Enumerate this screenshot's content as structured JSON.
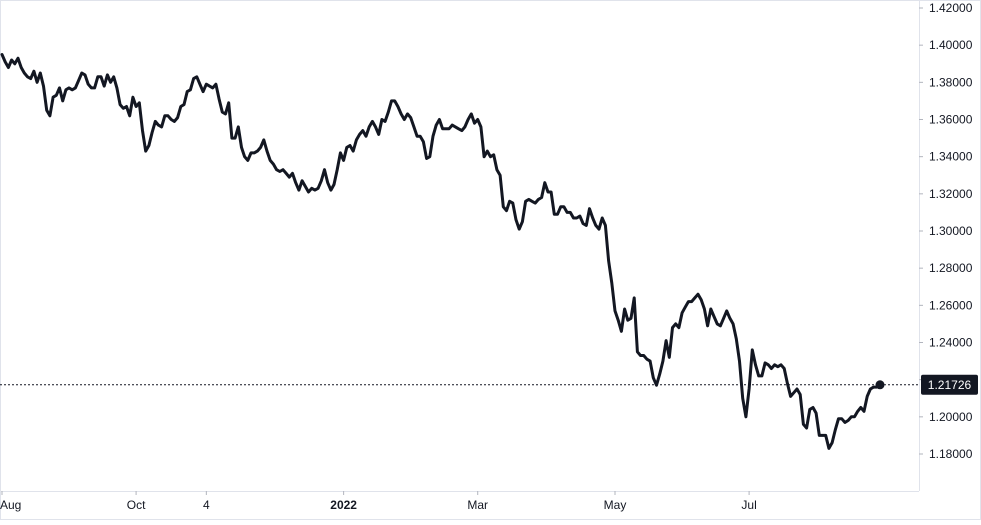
{
  "chart_data": {
    "type": "line",
    "title": "",
    "xlabel": "",
    "ylabel": "",
    "ylim": [
      1.17,
      1.42
    ],
    "ytick_labels": [
      "1.42000",
      "1.40000",
      "1.38000",
      "1.36000",
      "1.34000",
      "1.32000",
      "1.30000",
      "1.28000",
      "1.26000",
      "1.24000",
      "1.22000",
      "1.20000",
      "1.18000"
    ],
    "yticks": [
      1.42,
      1.4,
      1.38,
      1.36,
      1.34,
      1.32,
      1.3,
      1.28,
      1.26,
      1.24,
      1.22,
      1.2,
      1.18
    ],
    "xtick_labels": [
      {
        "label": "Aug",
        "index": 0
      },
      {
        "label": "Oct",
        "index": 42
      },
      {
        "label": "4",
        "index": 64
      },
      {
        "label": "2022",
        "index": 107
      },
      {
        "label": "Mar",
        "index": 149
      },
      {
        "label": "May",
        "index": 192
      },
      {
        "label": "Jul",
        "index": 234
      }
    ],
    "grid": false,
    "last_value_label": "1.21726",
    "last_value": 1.21726,
    "series": [
      {
        "color": "#131722",
        "values": [
          1.395,
          1.391,
          1.388,
          1.392,
          1.39,
          1.393,
          1.388,
          1.385,
          1.383,
          1.382,
          1.386,
          1.38,
          1.385,
          1.378,
          1.365,
          1.362,
          1.372,
          1.373,
          1.377,
          1.37,
          1.376,
          1.377,
          1.376,
          1.377,
          1.381,
          1.385,
          1.384,
          1.379,
          1.377,
          1.377,
          1.383,
          1.383,
          1.378,
          1.384,
          1.38,
          1.383,
          1.377,
          1.368,
          1.366,
          1.367,
          1.362,
          1.372,
          1.367,
          1.369,
          1.354,
          1.343,
          1.346,
          1.353,
          1.359,
          1.357,
          1.356,
          1.362,
          1.362,
          1.36,
          1.359,
          1.361,
          1.367,
          1.368,
          1.375,
          1.376,
          1.382,
          1.383,
          1.379,
          1.375,
          1.379,
          1.378,
          1.377,
          1.379,
          1.371,
          1.364,
          1.363,
          1.369,
          1.35,
          1.35,
          1.356,
          1.345,
          1.34,
          1.338,
          1.342,
          1.342,
          1.343,
          1.345,
          1.349,
          1.343,
          1.338,
          1.336,
          1.333,
          1.332,
          1.333,
          1.331,
          1.329,
          1.331,
          1.326,
          1.322,
          1.327,
          1.324,
          1.321,
          1.323,
          1.322,
          1.323,
          1.327,
          1.333,
          1.326,
          1.322,
          1.325,
          1.333,
          1.342,
          1.338,
          1.345,
          1.346,
          1.343,
          1.349,
          1.352,
          1.354,
          1.351,
          1.356,
          1.359,
          1.356,
          1.352,
          1.36,
          1.359,
          1.364,
          1.37,
          1.37,
          1.367,
          1.363,
          1.36,
          1.363,
          1.361,
          1.356,
          1.351,
          1.351,
          1.348,
          1.339,
          1.34,
          1.351,
          1.357,
          1.36,
          1.355,
          1.355,
          1.355,
          1.357,
          1.356,
          1.355,
          1.354,
          1.356,
          1.36,
          1.363,
          1.358,
          1.36,
          1.356,
          1.34,
          1.343,
          1.34,
          1.341,
          1.333,
          1.33,
          1.313,
          1.311,
          1.316,
          1.315,
          1.306,
          1.301,
          1.305,
          1.316,
          1.317,
          1.316,
          1.315,
          1.317,
          1.318,
          1.326,
          1.321,
          1.321,
          1.309,
          1.309,
          1.313,
          1.313,
          1.31,
          1.31,
          1.307,
          1.307,
          1.308,
          1.304,
          1.303,
          1.312,
          1.307,
          1.303,
          1.301,
          1.307,
          1.303,
          1.284,
          1.272,
          1.257,
          1.252,
          1.246,
          1.258,
          1.252,
          1.253,
          1.264,
          1.235,
          1.233,
          1.233,
          1.231,
          1.23,
          1.221,
          1.217,
          1.223,
          1.23,
          1.241,
          1.232,
          1.248,
          1.25,
          1.248,
          1.256,
          1.259,
          1.262,
          1.262,
          1.264,
          1.266,
          1.263,
          1.258,
          1.249,
          1.258,
          1.254,
          1.25,
          1.249,
          1.253,
          1.257,
          1.253,
          1.25,
          1.242,
          1.23,
          1.21,
          1.2,
          1.215,
          1.236,
          1.228,
          1.222,
          1.222,
          1.229,
          1.228,
          1.226,
          1.228,
          1.227,
          1.228,
          1.226,
          1.218,
          1.211,
          1.213,
          1.215,
          1.212,
          1.196,
          1.194,
          1.204,
          1.205,
          1.202,
          1.19,
          1.19,
          1.19,
          1.183,
          1.186,
          1.193,
          1.199,
          1.199,
          1.197,
          1.198,
          1.2,
          1.2,
          1.203,
          1.205,
          1.203,
          1.211,
          1.215,
          1.216,
          1.216,
          1.217
        ]
      }
    ]
  }
}
